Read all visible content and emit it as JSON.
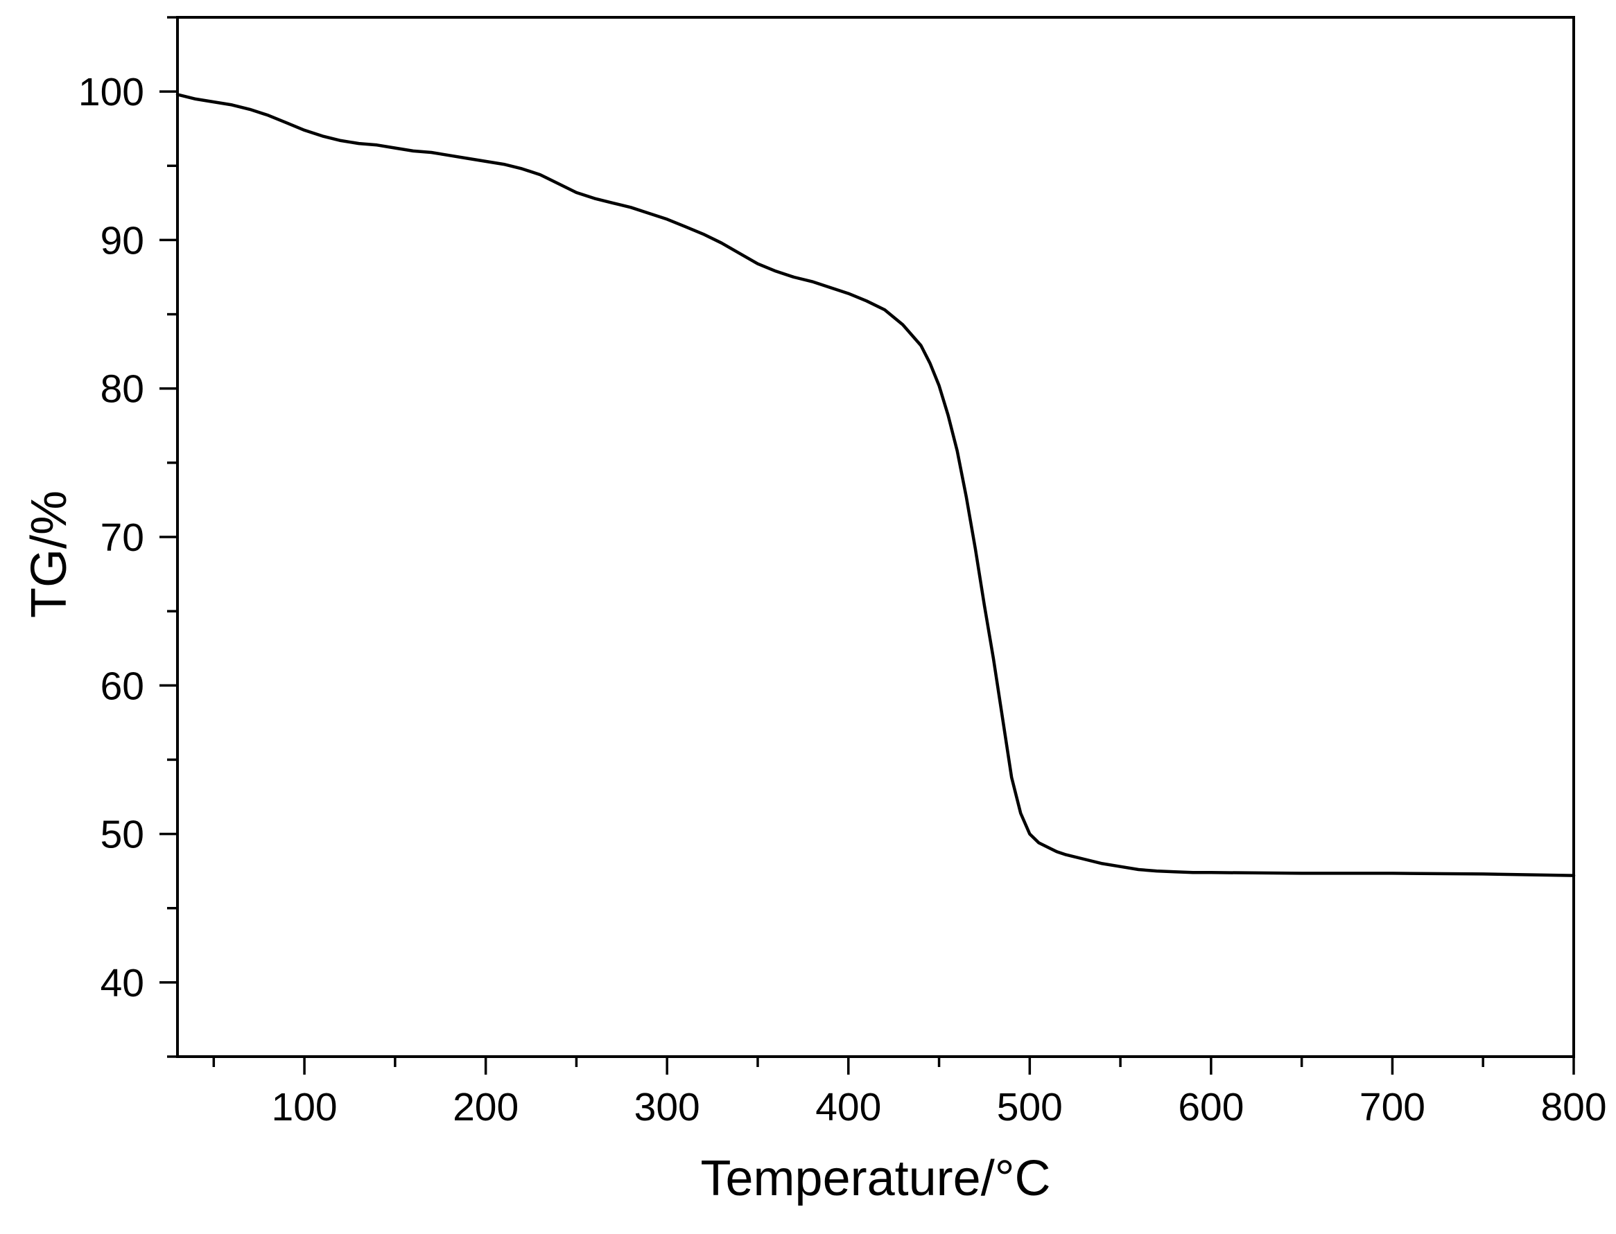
{
  "chart_data": {
    "type": "line",
    "title": "",
    "xlabel": "Temperature/°C",
    "ylabel": "TG/%",
    "xlim": [
      30,
      800
    ],
    "ylim": [
      35,
      105
    ],
    "x_ticks": [
      100,
      200,
      300,
      400,
      500,
      600,
      700,
      800
    ],
    "y_ticks": [
      40,
      50,
      60,
      70,
      80,
      90,
      100
    ],
    "grid": false,
    "legend": "none",
    "line_color": "#000000",
    "series": [
      {
        "x": [
          30,
          40,
          50,
          60,
          70,
          80,
          90,
          100,
          110,
          120,
          130,
          140,
          150,
          160,
          170,
          180,
          190,
          200,
          210,
          220,
          230,
          240,
          250,
          260,
          270,
          280,
          290,
          300,
          310,
          320,
          330,
          340,
          350,
          360,
          370,
          380,
          390,
          400,
          410,
          420,
          430,
          440,
          445,
          450,
          455,
          460,
          465,
          470,
          475,
          480,
          485,
          490,
          495,
          500,
          505,
          510,
          515,
          520,
          530,
          540,
          550,
          560,
          570,
          580,
          590,
          600,
          650,
          700,
          750,
          800
        ],
        "values": [
          99.8,
          99.5,
          99.3,
          99.1,
          98.8,
          98.4,
          97.9,
          97.4,
          97.0,
          96.7,
          96.5,
          96.4,
          96.2,
          96.0,
          95.9,
          95.7,
          95.5,
          95.3,
          95.1,
          94.8,
          94.4,
          93.8,
          93.2,
          92.8,
          92.5,
          92.2,
          91.8,
          91.4,
          90.9,
          90.4,
          89.8,
          89.1,
          88.4,
          87.9,
          87.5,
          87.2,
          86.8,
          86.4,
          85.9,
          85.3,
          84.3,
          82.9,
          81.7,
          80.2,
          78.2,
          75.8,
          72.7,
          69.2,
          65.4,
          61.8,
          57.8,
          53.8,
          51.4,
          50.0,
          49.4,
          49.1,
          48.8,
          48.6,
          48.3,
          48.0,
          47.8,
          47.6,
          47.5,
          47.45,
          47.4,
          47.4,
          47.35,
          47.35,
          47.3,
          47.2
        ]
      }
    ]
  }
}
